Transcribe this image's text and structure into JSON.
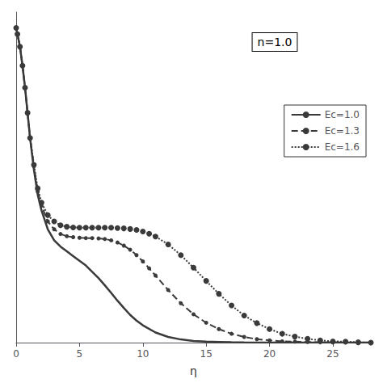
{
  "chart_data": {
    "type": "line",
    "title": "",
    "xlabel": "η",
    "annotations": [
      "n=1.0"
    ],
    "xlim": [
      0,
      28
    ],
    "xticks": [
      0,
      5,
      10,
      15,
      20,
      25
    ],
    "ylim": [
      0,
      1.05
    ],
    "yticks": [],
    "tick_labels": "x",
    "grid": false,
    "legend": "right",
    "series": [
      {
        "name": "Ec=1.0",
        "color": "#3a3a3a",
        "line_style": "solid",
        "marker": "none",
        "x": [
          0.0,
          0.1,
          0.3,
          0.5,
          0.7,
          0.9,
          1.1,
          1.4,
          1.7,
          2.0,
          2.5,
          3.0,
          3.5,
          4.0,
          4.5,
          5.0,
          5.5,
          6.0,
          6.5,
          7.0,
          7.5,
          8.0,
          8.5,
          9.0,
          9.5,
          10.0,
          11.0,
          12.0,
          13.0,
          14.0,
          15.0,
          16.0,
          17.0,
          18.0,
          19.0,
          20.0,
          22.0,
          24.0,
          26.0,
          28.0
        ],
        "values": [
          1.0,
          0.98,
          0.94,
          0.88,
          0.81,
          0.73,
          0.65,
          0.55,
          0.47,
          0.42,
          0.36,
          0.325,
          0.305,
          0.29,
          0.275,
          0.26,
          0.245,
          0.225,
          0.205,
          0.182,
          0.158,
          0.133,
          0.11,
          0.088,
          0.07,
          0.055,
          0.032,
          0.018,
          0.01,
          0.005,
          0.003,
          0.002,
          0.001,
          0.0005,
          0.0003,
          0.0002,
          0.0001,
          0.0,
          0.0,
          0.0
        ]
      },
      {
        "name": "Ec=1.3",
        "color": "#3a3a3a",
        "line_style": "dashed",
        "marker": "circle",
        "x": [
          0.0,
          0.1,
          0.3,
          0.5,
          0.7,
          0.9,
          1.1,
          1.4,
          1.7,
          2.0,
          2.5,
          3.0,
          3.5,
          4.0,
          4.5,
          5.0,
          5.5,
          6.0,
          6.5,
          7.0,
          7.5,
          8.0,
          8.5,
          9.0,
          9.5,
          10.0,
          10.5,
          11.0,
          12.0,
          13.0,
          14.0,
          15.0,
          16.0,
          17.0,
          18.0,
          19.0,
          20.0,
          21.0,
          22.0,
          23.0,
          24.0,
          25.0,
          26.0,
          27.0,
          28.0
        ],
        "values": [
          1.0,
          0.98,
          0.94,
          0.88,
          0.81,
          0.73,
          0.65,
          0.56,
          0.48,
          0.435,
          0.385,
          0.36,
          0.345,
          0.338,
          0.335,
          0.333,
          0.332,
          0.332,
          0.331,
          0.329,
          0.325,
          0.318,
          0.308,
          0.295,
          0.278,
          0.258,
          0.236,
          0.213,
          0.167,
          0.125,
          0.09,
          0.063,
          0.043,
          0.028,
          0.018,
          0.011,
          0.007,
          0.004,
          0.003,
          0.002,
          0.001,
          0.0005,
          0.0003,
          0.0001,
          0.0
        ]
      },
      {
        "name": "Ec=1.6",
        "color": "#3a3a3a",
        "line_style": "dotted",
        "marker": "circle",
        "x": [
          0.0,
          0.1,
          0.3,
          0.5,
          0.7,
          0.9,
          1.1,
          1.4,
          1.7,
          2.0,
          2.5,
          3.0,
          3.5,
          4.0,
          4.5,
          5.0,
          5.5,
          6.0,
          6.5,
          7.0,
          7.5,
          8.0,
          8.5,
          9.0,
          9.5,
          10.0,
          10.5,
          11.0,
          12.0,
          13.0,
          14.0,
          15.0,
          16.0,
          17.0,
          18.0,
          19.0,
          20.0,
          21.0,
          22.0,
          23.0,
          24.0,
          25.0,
          26.0,
          27.0,
          28.0
        ],
        "values": [
          1.0,
          0.98,
          0.94,
          0.88,
          0.81,
          0.73,
          0.65,
          0.565,
          0.49,
          0.445,
          0.405,
          0.385,
          0.373,
          0.368,
          0.366,
          0.365,
          0.365,
          0.365,
          0.365,
          0.365,
          0.365,
          0.364,
          0.363,
          0.361,
          0.358,
          0.353,
          0.346,
          0.337,
          0.312,
          0.278,
          0.238,
          0.196,
          0.155,
          0.118,
          0.086,
          0.062,
          0.043,
          0.028,
          0.019,
          0.012,
          0.007,
          0.004,
          0.003,
          0.001,
          0.0
        ]
      }
    ]
  }
}
